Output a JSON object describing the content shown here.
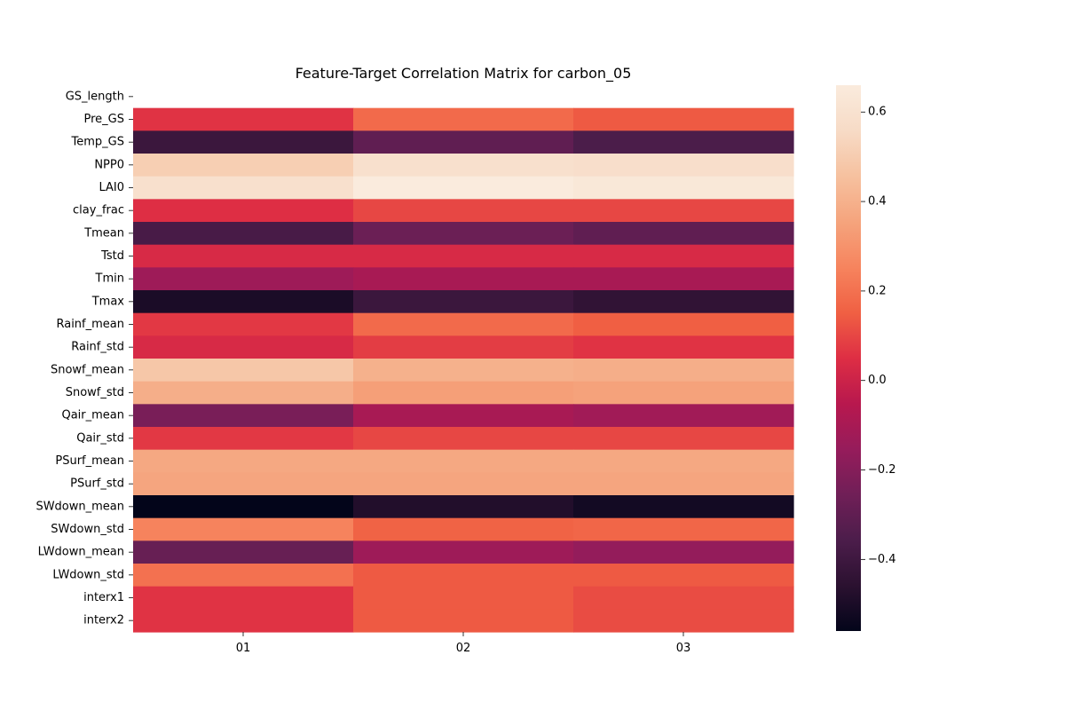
{
  "chart_data": {
    "type": "heatmap",
    "title": "Feature-Target Correlation Matrix for carbon_05",
    "columns": [
      "01",
      "02",
      "03"
    ],
    "rows": [
      "GS_length",
      "Pre_GS",
      "Temp_GS",
      "NPP0",
      "LAI0",
      "clay_frac",
      "Tmean",
      "Tstd",
      "Tmin",
      "Tmax",
      "Rainf_mean",
      "Rainf_std",
      "Snowf_mean",
      "Snowf_std",
      "Qair_mean",
      "Qair_std",
      "PSurf_mean",
      "PSurf_std",
      "SWdown_mean",
      "SWdown_std",
      "LWdown_mean",
      "LWdown_std",
      "interx1",
      "interx2"
    ],
    "values": [
      [
        null,
        null,
        null
      ],
      [
        0.06,
        0.18,
        0.14
      ],
      [
        -0.41,
        -0.3,
        -0.36
      ],
      [
        0.51,
        0.59,
        0.58
      ],
      [
        0.59,
        0.66,
        0.64
      ],
      [
        0.05,
        0.1,
        0.1
      ],
      [
        -0.37,
        -0.27,
        -0.3
      ],
      [
        0.03,
        0.03,
        0.03
      ],
      [
        -0.13,
        -0.1,
        -0.1
      ],
      [
        -0.5,
        -0.41,
        -0.44
      ],
      [
        0.07,
        0.18,
        0.15
      ],
      [
        0.03,
        0.08,
        0.06
      ],
      [
        0.48,
        0.4,
        0.39
      ],
      [
        0.39,
        0.34,
        0.35
      ],
      [
        -0.23,
        -0.1,
        -0.12
      ],
      [
        0.07,
        0.1,
        0.1
      ],
      [
        0.37,
        0.37,
        0.37
      ],
      [
        0.36,
        0.36,
        0.36
      ],
      [
        -0.56,
        -0.48,
        -0.52
      ],
      [
        0.25,
        0.16,
        0.17
      ],
      [
        -0.28,
        -0.13,
        -0.16
      ],
      [
        0.2,
        0.14,
        0.14
      ],
      [
        0.06,
        0.14,
        0.11
      ],
      [
        0.06,
        0.14,
        0.11
      ]
    ],
    "colorbar": {
      "min": -0.56,
      "max": 0.66,
      "ticks": [
        0.6,
        0.4,
        0.2,
        0.0,
        -0.2,
        -0.4
      ],
      "tick_labels": [
        "0.6",
        "0.4",
        "0.2",
        "0.0",
        "−0.2",
        "−0.4"
      ],
      "colormap": "rocket",
      "colormap_stops": [
        "#03051a",
        "#2b1130",
        "#4c1d4b",
        "#701f57",
        "#961c5b",
        "#b8184e",
        "#de2e44",
        "#f06043",
        "#f6845e",
        "#f5a47d",
        "#f6c19f",
        "#f7dbc6",
        "#faebdd"
      ]
    },
    "xlabel": "",
    "ylabel": ""
  }
}
